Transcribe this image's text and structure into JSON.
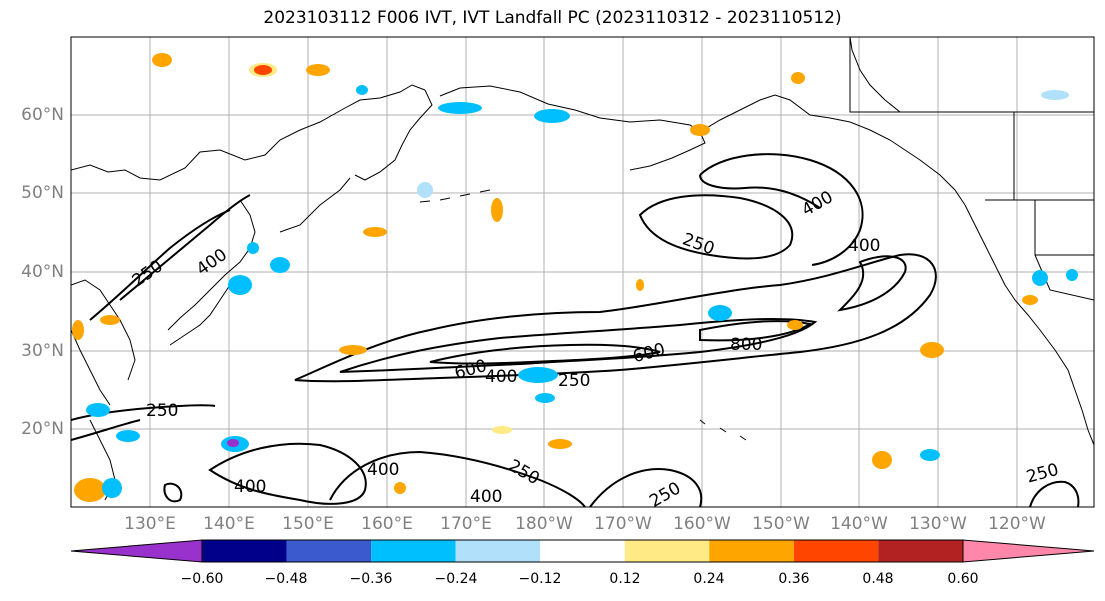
{
  "title": "2023103112 F006 IVT, IVT Landfall PC (2023110312 - 2023110512)",
  "lat_labels": [
    "60°N",
    "50°N",
    "40°N",
    "30°N",
    "20°N"
  ],
  "lon_labels": [
    "130°E",
    "140°E",
    "150°E",
    "160°E",
    "170°E",
    "180°W",
    "170°W",
    "160°W",
    "150°W",
    "140°W",
    "130°W",
    "120°W"
  ],
  "colorbar": {
    "tick_labels": [
      "−0.60",
      "−0.48",
      "−0.36",
      "−0.24",
      "−0.12",
      "0.12",
      "0.24",
      "0.36",
      "0.48",
      "0.60"
    ],
    "colors": [
      "#9932cc",
      "#00008b",
      "#3a5acd",
      "#00bfff",
      "#b0e0fa",
      "#ffffff",
      "#ffea86",
      "#ffa500",
      "#ff4500",
      "#b22222",
      "#ff88aa"
    ]
  },
  "contour_labels": [
    "250",
    "400",
    "250",
    "400",
    "400",
    "600",
    "400",
    "250",
    "600",
    "800",
    "250",
    "400",
    "400",
    "250",
    "250",
    "400",
    "250"
  ]
}
